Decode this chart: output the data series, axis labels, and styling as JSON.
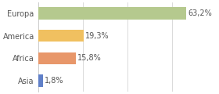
{
  "categories": [
    "Europa",
    "America",
    "Africa",
    "Asia"
  ],
  "values": [
    63.2,
    19.3,
    15.8,
    1.8
  ],
  "labels": [
    "63,2%",
    "19,3%",
    "15,8%",
    "1,8%"
  ],
  "bar_colors": [
    "#b5c98e",
    "#f0c060",
    "#e8976a",
    "#6080c8"
  ],
  "background_color": "#ffffff",
  "plot_bg_color": "#ffffff",
  "xlim": [
    0,
    76
  ],
  "bar_height": 0.55,
  "label_fontsize": 7.0,
  "tick_fontsize": 7.0,
  "grid_color": "#cccccc",
  "text_color": "#555555",
  "grid_xticks": [
    0,
    19,
    38,
    57,
    76
  ]
}
